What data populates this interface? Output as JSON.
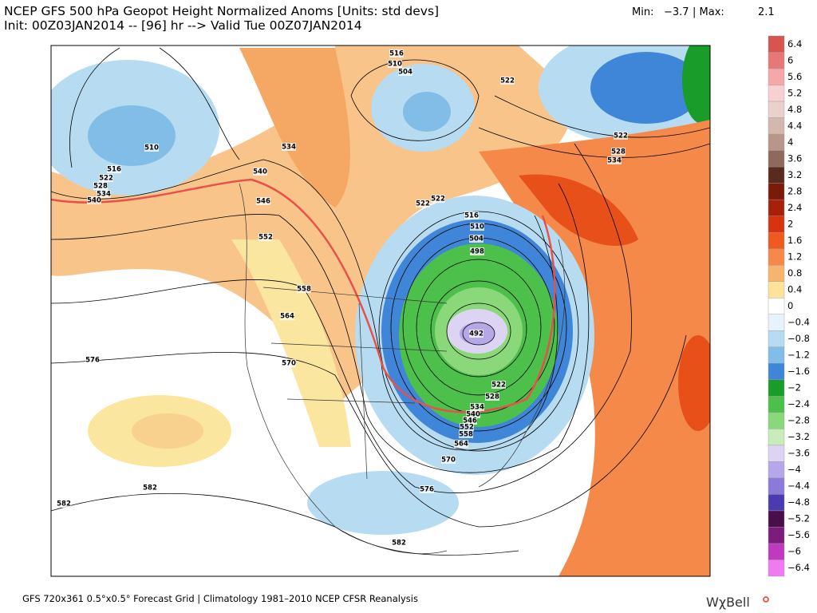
{
  "header": {
    "title": "NCEP GFS 500 hPa Geopot Height Normalized Anoms [Units: std devs]",
    "init": "Init: 00Z03JAN2014 -- [96] hr --> Valid Tue 00Z07JAN2014",
    "min_label": "Min:",
    "min_value": "−3.7",
    "max_label": "| Max:",
    "max_value": "2.1"
  },
  "colorbar": {
    "labels": [
      "6.4",
      "6",
      "5.6",
      "5.2",
      "4.8",
      "4.4",
      "4",
      "3.6",
      "3.2",
      "2.8",
      "2.4",
      "2",
      "1.6",
      "1.2",
      "0.8",
      "0.4",
      "0",
      "−0.4",
      "−0.8",
      "−1.2",
      "−1.6",
      "−2",
      "−2.4",
      "−2.8",
      "−3.2",
      "−3.6",
      "−4",
      "−4.4",
      "−4.8",
      "−5.2",
      "−5.6",
      "−6",
      "−6.4"
    ],
    "colors": [
      "#d9534f",
      "#e87878",
      "#f4a8a8",
      "#f8d0d0",
      "#ead2cb",
      "#d4b8ad",
      "#b8978a",
      "#8d6a5c",
      "#5a2a1f",
      "#7a1a0a",
      "#a8200a",
      "#d8320e",
      "#ef5a1f",
      "#f5894a",
      "#f8b36e",
      "#fbe39a",
      "#ffffff",
      "#e6f3fb",
      "#b7dcf2",
      "#82bde8",
      "#3f86d9",
      "#1a9c2a",
      "#4cc04a",
      "#8ad87a",
      "#c8edbb",
      "#ddd4f3",
      "#b6a8e8",
      "#8b7adb",
      "#4b3bb0",
      "#4a0f4a",
      "#7c1c7c",
      "#c03ac0",
      "#f07af0"
    ]
  },
  "contour_labels": [
    "516",
    "510",
    "504",
    "522",
    "522",
    "528",
    "534",
    "510",
    "516",
    "522",
    "528",
    "534",
    "540",
    "534",
    "540",
    "546",
    "552",
    "522",
    "522",
    "516",
    "510",
    "504",
    "498",
    "492",
    "558",
    "564",
    "570",
    "576",
    "522",
    "528",
    "534",
    "540",
    "546",
    "552",
    "558",
    "564",
    "570",
    "576",
    "582",
    "582",
    "582"
  ],
  "footer": "GFS 720x361 0.5°x0.5° Forecast Grid | Climatology 1981–2010 NCEP CFSR Reanalysis",
  "logo": "WχBell"
}
